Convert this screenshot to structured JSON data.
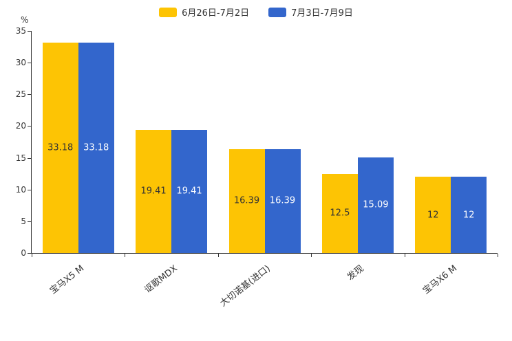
{
  "chart_data": {
    "type": "bar",
    "title": "",
    "categories": [
      "宝马X5 M",
      "讴歌MDX",
      "大切诺基(进口)",
      "发现",
      "宝马X6 M"
    ],
    "series": [
      {
        "name": "6月26日-7月2日",
        "color": "#FDC404",
        "label_color": "#333333",
        "values": [
          33.18,
          19.41,
          16.39,
          12.5,
          12
        ]
      },
      {
        "name": "7月3日-7月9日",
        "color": "#3366CC",
        "label_color": "#ffffff",
        "values": [
          33.18,
          19.41,
          16.39,
          15.09,
          12
        ]
      }
    ],
    "xlabel": "",
    "ylabel": "%",
    "ylim": [
      0,
      35
    ],
    "yticks": [
      0,
      5,
      10,
      15,
      20,
      25,
      30,
      35
    ],
    "grid": false,
    "legend_position": "top",
    "value_labels_shown": true
  }
}
